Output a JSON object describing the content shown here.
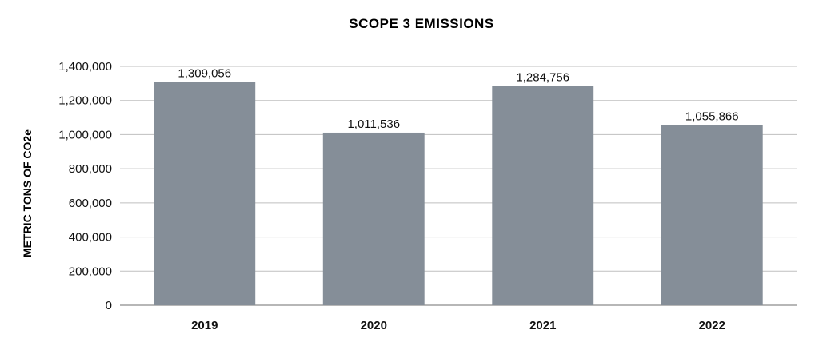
{
  "chart_data": {
    "type": "bar",
    "title": "SCOPE 3 EMISSIONS",
    "xlabel": "",
    "ylabel": "METRIC TONS OF CO2e",
    "categories": [
      "2019",
      "2020",
      "2021",
      "2022"
    ],
    "values": [
      1309056,
      1011536,
      1284756,
      1055866
    ],
    "data_labels": [
      "1,309,056",
      "1,011,536",
      "1,284,756",
      "1,055,866"
    ],
    "ylim": [
      0,
      1400000
    ],
    "yticks": [
      0,
      200000,
      400000,
      600000,
      800000,
      1000000,
      1200000,
      1400000
    ],
    "ytick_labels": [
      "0",
      "200,000",
      "400,000",
      "600,000",
      "800,000",
      "1,000,000",
      "1,200,000",
      "1,400,000"
    ],
    "grid": true,
    "legend": "none",
    "colors": {
      "bar": "#858e98",
      "grid": "#bfbfbf",
      "axis": "#8c8c8c"
    }
  }
}
